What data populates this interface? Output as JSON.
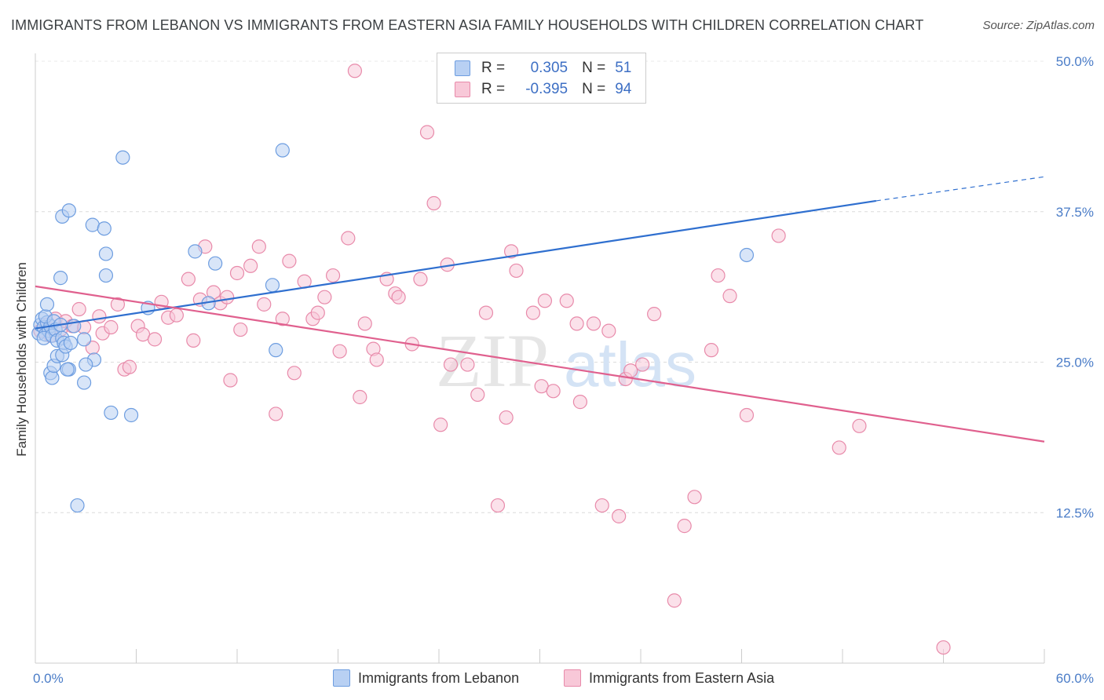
{
  "header": {
    "title": "IMMIGRANTS FROM LEBANON VS IMMIGRANTS FROM EASTERN ASIA FAMILY HOUSEHOLDS WITH CHILDREN CORRELATION CHART",
    "source": "Source: ZipAtlas.com"
  },
  "colors": {
    "blue_fill": "#b8d0f3",
    "blue_stroke": "#6d9de0",
    "blue_line": "#2f6fcf",
    "pink_fill": "#f8c8d8",
    "pink_stroke": "#e88aaa",
    "pink_line": "#e0608e",
    "axis_text": "#4a7cc7"
  },
  "legend": {
    "rows": [
      {
        "r_label": "R =",
        "r_value": "0.305",
        "n_label": "N =",
        "n_value": "51"
      },
      {
        "r_label": "R =",
        "r_value": "-0.395",
        "n_label": "N =",
        "n_value": "94"
      }
    ]
  },
  "watermark": {
    "zip": "ZIP",
    "atlas": "atlas"
  },
  "chart_data": {
    "type": "scatter",
    "title": "IMMIGRANTS FROM LEBANON VS IMMIGRANTS FROM EASTERN ASIA FAMILY HOUSEHOLDS WITH CHILDREN CORRELATION CHART",
    "xlabel": "",
    "ylabel": "Family Households with Children",
    "xlim": [
      0,
      60
    ],
    "ylim": [
      0,
      50
    ],
    "x_tick_labels": [
      "0.0%",
      "60.0%"
    ],
    "y_ticks": [
      12.5,
      25.0,
      37.5,
      50.0
    ],
    "y_tick_labels": [
      "12.5%",
      "25.0%",
      "37.5%",
      "50.0%"
    ],
    "grid": "horizontal dashed",
    "series": [
      {
        "name": "Immigrants from Lebanon",
        "color": "blue",
        "trend": {
          "x": [
            0,
            50,
            60
          ],
          "y": [
            27.8,
            38.4,
            40.4
          ],
          "solid_to_x": 50
        },
        "points": [
          [
            0.2,
            27.4
          ],
          [
            0.3,
            28.1
          ],
          [
            0.4,
            28.6
          ],
          [
            0.5,
            27.9
          ],
          [
            0.6,
            27.3
          ],
          [
            0.7,
            28.3
          ],
          [
            0.8,
            27.6
          ],
          [
            0.9,
            28.0
          ],
          [
            0.5,
            27.0
          ],
          [
            0.6,
            28.8
          ],
          [
            1.0,
            27.2
          ],
          [
            1.1,
            28.4
          ],
          [
            1.2,
            27.7
          ],
          [
            1.3,
            26.8
          ],
          [
            1.5,
            28.1
          ],
          [
            1.6,
            27.0
          ],
          [
            0.7,
            29.8
          ],
          [
            0.9,
            24.1
          ],
          [
            1.0,
            23.7
          ],
          [
            1.1,
            24.7
          ],
          [
            1.3,
            25.5
          ],
          [
            1.6,
            25.6
          ],
          [
            1.7,
            26.6
          ],
          [
            1.8,
            26.3
          ],
          [
            2.0,
            24.4
          ],
          [
            2.1,
            26.6
          ],
          [
            1.9,
            24.4
          ],
          [
            2.3,
            28.0
          ],
          [
            2.9,
            23.3
          ],
          [
            2.9,
            26.9
          ],
          [
            3.5,
            25.2
          ],
          [
            1.5,
            32.0
          ],
          [
            1.6,
            37.1
          ],
          [
            2.0,
            37.6
          ],
          [
            3.4,
            36.4
          ],
          [
            4.1,
            36.1
          ],
          [
            4.2,
            34.0
          ],
          [
            4.2,
            32.2
          ],
          [
            4.5,
            20.8
          ],
          [
            5.2,
            42.0
          ],
          [
            5.7,
            20.6
          ],
          [
            6.7,
            29.5
          ],
          [
            9.5,
            34.2
          ],
          [
            10.3,
            29.9
          ],
          [
            10.7,
            33.2
          ],
          [
            14.1,
            31.4
          ],
          [
            14.3,
            26.0
          ],
          [
            14.7,
            42.6
          ],
          [
            42.3,
            33.9
          ],
          [
            2.5,
            13.1
          ],
          [
            3.0,
            24.8
          ]
        ]
      },
      {
        "name": "Immigrants from Eastern Asia",
        "color": "pink",
        "trend": {
          "x": [
            0,
            60
          ],
          "y": [
            31.3,
            18.4
          ]
        },
        "points": [
          [
            0.3,
            27.6
          ],
          [
            0.6,
            28.1
          ],
          [
            0.9,
            27.2
          ],
          [
            1.2,
            28.6
          ],
          [
            1.5,
            27.7
          ],
          [
            1.8,
            28.4
          ],
          [
            2.2,
            28.0
          ],
          [
            2.6,
            29.4
          ],
          [
            2.9,
            27.9
          ],
          [
            3.4,
            26.2
          ],
          [
            3.8,
            28.8
          ],
          [
            4.0,
            27.4
          ],
          [
            4.5,
            27.9
          ],
          [
            4.9,
            29.8
          ],
          [
            5.3,
            24.4
          ],
          [
            5.6,
            24.6
          ],
          [
            6.1,
            28.0
          ],
          [
            6.4,
            27.3
          ],
          [
            7.1,
            26.9
          ],
          [
            7.5,
            30.0
          ],
          [
            7.9,
            28.7
          ],
          [
            8.4,
            28.9
          ],
          [
            9.1,
            31.9
          ],
          [
            9.4,
            26.8
          ],
          [
            9.8,
            30.2
          ],
          [
            10.1,
            34.6
          ],
          [
            10.6,
            30.8
          ],
          [
            11.0,
            29.9
          ],
          [
            11.4,
            30.4
          ],
          [
            11.6,
            23.5
          ],
          [
            12.2,
            27.7
          ],
          [
            12.8,
            33.0
          ],
          [
            13.3,
            34.6
          ],
          [
            13.6,
            29.8
          ],
          [
            14.3,
            20.7
          ],
          [
            14.7,
            28.6
          ],
          [
            15.1,
            33.4
          ],
          [
            15.4,
            24.1
          ],
          [
            16.0,
            31.7
          ],
          [
            16.5,
            28.6
          ],
          [
            16.8,
            29.1
          ],
          [
            17.2,
            30.4
          ],
          [
            17.7,
            32.2
          ],
          [
            18.1,
            25.9
          ],
          [
            18.6,
            35.3
          ],
          [
            19.3,
            22.1
          ],
          [
            19.6,
            28.2
          ],
          [
            20.1,
            26.1
          ],
          [
            20.3,
            25.2
          ],
          [
            20.9,
            31.9
          ],
          [
            21.4,
            30.7
          ],
          [
            21.6,
            30.4
          ],
          [
            22.4,
            26.5
          ],
          [
            22.9,
            31.9
          ],
          [
            23.3,
            44.1
          ],
          [
            23.7,
            38.2
          ],
          [
            24.1,
            19.8
          ],
          [
            24.5,
            33.1
          ],
          [
            24.7,
            24.8
          ],
          [
            25.7,
            24.8
          ],
          [
            26.3,
            22.3
          ],
          [
            26.8,
            29.1
          ],
          [
            27.5,
            13.1
          ],
          [
            28.0,
            20.4
          ],
          [
            28.3,
            34.2
          ],
          [
            28.6,
            32.6
          ],
          [
            29.6,
            29.1
          ],
          [
            30.1,
            23.0
          ],
          [
            30.3,
            30.1
          ],
          [
            30.8,
            22.6
          ],
          [
            31.6,
            30.1
          ],
          [
            32.2,
            28.2
          ],
          [
            32.4,
            21.7
          ],
          [
            33.2,
            28.2
          ],
          [
            33.7,
            13.1
          ],
          [
            34.1,
            27.6
          ],
          [
            34.7,
            12.2
          ],
          [
            35.1,
            23.6
          ],
          [
            35.4,
            24.3
          ],
          [
            36.1,
            24.8
          ],
          [
            36.8,
            29.0
          ],
          [
            38.0,
            5.2
          ],
          [
            38.6,
            11.4
          ],
          [
            39.2,
            13.8
          ],
          [
            40.2,
            26.0
          ],
          [
            40.6,
            32.2
          ],
          [
            41.3,
            30.5
          ],
          [
            42.3,
            20.6
          ],
          [
            44.2,
            35.5
          ],
          [
            47.8,
            17.9
          ],
          [
            49.0,
            19.7
          ],
          [
            54.0,
            1.3
          ],
          [
            19.0,
            49.2
          ],
          [
            12.0,
            32.4
          ]
        ]
      }
    ]
  },
  "bottom_legend": {
    "series1": "Immigrants from Lebanon",
    "series2": "Immigrants from Eastern Asia"
  }
}
